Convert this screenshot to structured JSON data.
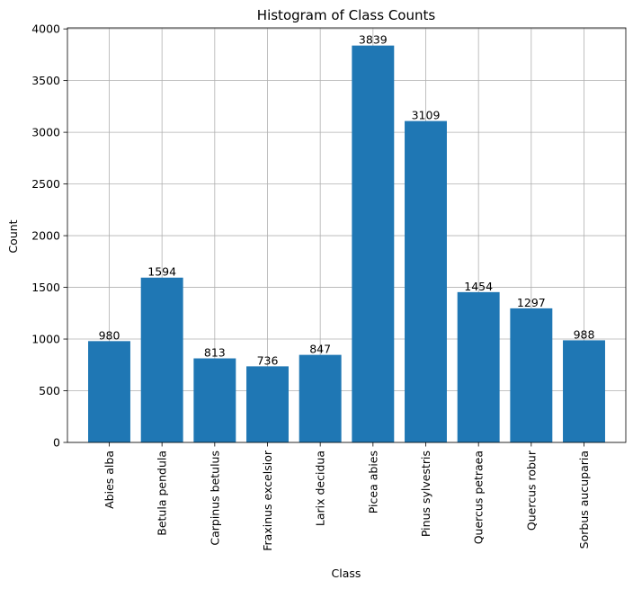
{
  "chart_data": {
    "type": "bar",
    "title": "Histogram of Class Counts",
    "xlabel": "Class",
    "ylabel": "Count",
    "categories": [
      "Abies alba",
      "Betula pendula",
      "Carpinus betulus",
      "Fraxinus excelsior",
      "Larix decidua",
      "Picea abies",
      "Pinus sylvestris",
      "Quercus petraea",
      "Quercus robur",
      "Sorbus aucuparia"
    ],
    "values": [
      980,
      1594,
      813,
      736,
      847,
      3839,
      3109,
      1454,
      1297,
      988
    ],
    "ylim": [
      0,
      4010
    ],
    "yticks": [
      0,
      500,
      1000,
      1500,
      2000,
      2500,
      3000,
      3500,
      4000
    ],
    "grid": true,
    "bar_color": "#1f77b4",
    "grid_color": "#b0b0b0"
  }
}
